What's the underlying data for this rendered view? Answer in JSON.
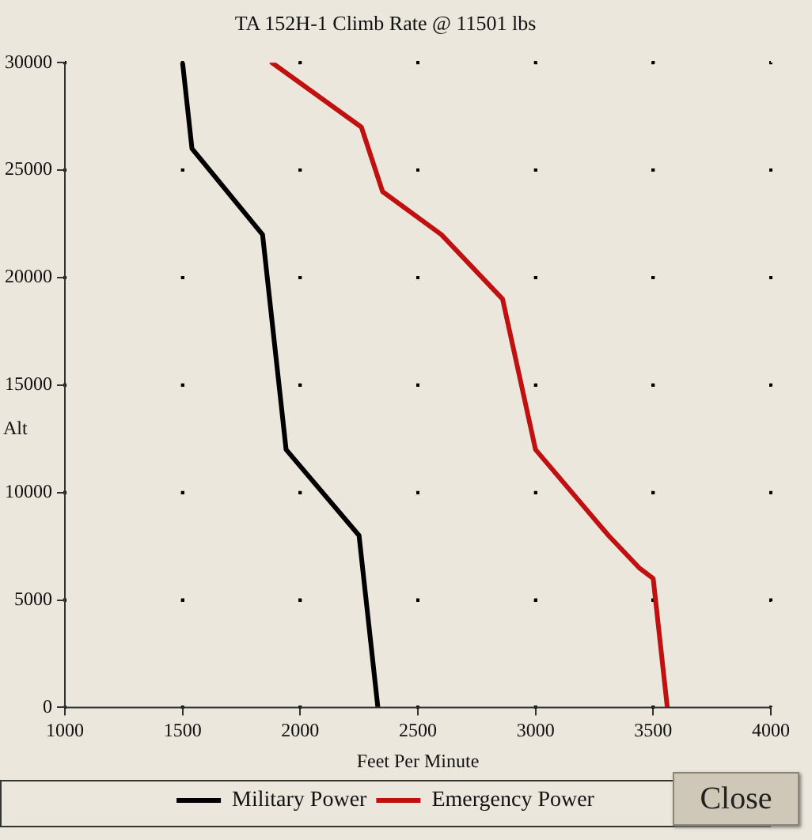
{
  "chart_data": {
    "type": "line",
    "title": "TA 152H-1 Climb Rate @ 11501 lbs",
    "xlabel": "Feet Per Minute",
    "ylabel": "Alt",
    "xlim": [
      1000,
      4000
    ],
    "xticks": [
      1000,
      1500,
      2000,
      2500,
      3000,
      3500,
      4000
    ],
    "ylim": [
      0,
      30000
    ],
    "yticks": [
      0,
      5000,
      10000,
      15000,
      20000,
      25000,
      30000
    ],
    "grid": true,
    "legend": "bottom",
    "marker": "none",
    "line_style": "solid",
    "annotations": [
      "Close"
    ],
    "series": [
      {
        "name": "Military Power",
        "color": "#000000",
        "x": [
          2330,
          2250,
          1940,
          1840,
          1540,
          1500
        ],
        "values": [
          0,
          8000,
          12000,
          22000,
          26000,
          30000
        ]
      },
      {
        "name": "Emergency Power",
        "color": "#c01010",
        "x": [
          3560,
          3500,
          3440,
          3310,
          3000,
          2860,
          2600,
          2350,
          2260,
          1880
        ],
        "values": [
          0,
          6000,
          6500,
          8000,
          12000,
          19000,
          22000,
          24000,
          27000,
          30000
        ]
      }
    ]
  }
}
